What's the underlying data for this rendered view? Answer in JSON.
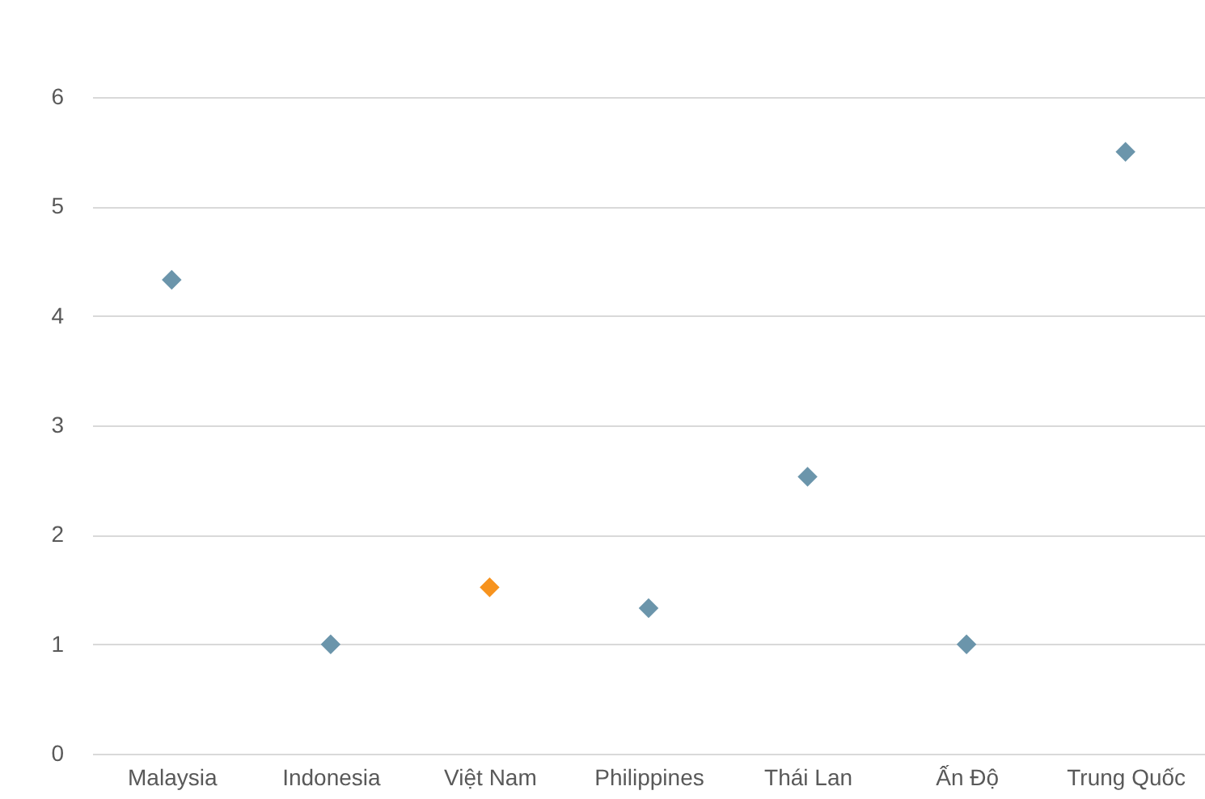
{
  "chart_data": {
    "type": "scatter",
    "categories": [
      "Malaysia",
      "Indonesia",
      "Việt Nam",
      "Philippines",
      "Thái Lan",
      "Ấn Độ",
      "Trung Quốc"
    ],
    "values": [
      4.33,
      1.0,
      1.52,
      1.33,
      2.53,
      1.0,
      5.5
    ],
    "colors": [
      "#6b95ab",
      "#6b95ab",
      "#f7931e",
      "#6b95ab",
      "#6b95ab",
      "#6b95ab",
      "#6b95ab"
    ],
    "ylim": [
      0,
      6
    ],
    "yticks": [
      0,
      1,
      2,
      3,
      4,
      5,
      6
    ],
    "grid": "y",
    "marker": "diamond"
  }
}
